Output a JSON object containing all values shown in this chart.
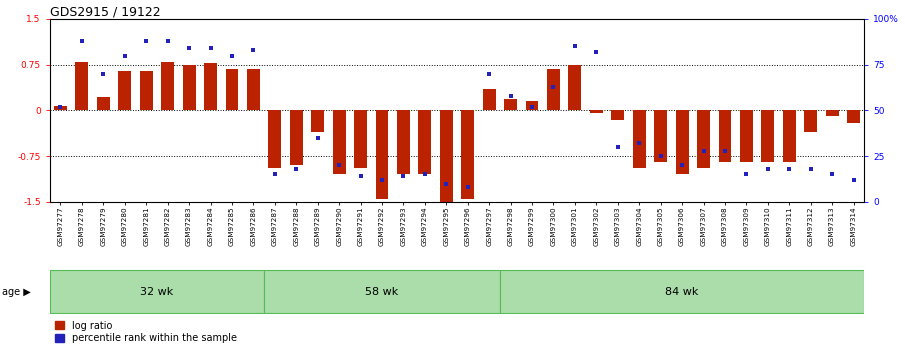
{
  "title": "GDS2915 / 19122",
  "samples": [
    "GSM97277",
    "GSM97278",
    "GSM97279",
    "GSM97280",
    "GSM97281",
    "GSM97282",
    "GSM97283",
    "GSM97284",
    "GSM97285",
    "GSM97286",
    "GSM97287",
    "GSM97288",
    "GSM97289",
    "GSM97290",
    "GSM97291",
    "GSM97292",
    "GSM97293",
    "GSM97294",
    "GSM97295",
    "GSM97296",
    "GSM97297",
    "GSM97298",
    "GSM97299",
    "GSM97300",
    "GSM97301",
    "GSM97302",
    "GSM97303",
    "GSM97304",
    "GSM97305",
    "GSM97306",
    "GSM97307",
    "GSM97308",
    "GSM97309",
    "GSM97310",
    "GSM97311",
    "GSM97312",
    "GSM97313",
    "GSM97314"
  ],
  "log_ratio": [
    0.07,
    0.8,
    0.22,
    0.65,
    0.65,
    0.8,
    0.75,
    0.78,
    0.68,
    0.68,
    -0.95,
    -0.9,
    -0.35,
    -1.05,
    -0.95,
    -1.45,
    -1.05,
    -1.05,
    -1.5,
    -1.45,
    0.35,
    0.18,
    0.15,
    0.68,
    0.75,
    -0.05,
    -0.15,
    -0.95,
    -0.85,
    -1.05,
    -0.95,
    -0.85,
    -0.85,
    -0.85,
    -0.85,
    -0.35,
    -0.1,
    -0.2
  ],
  "percentile": [
    52,
    88,
    70,
    80,
    88,
    88,
    84,
    84,
    80,
    83,
    15,
    18,
    35,
    20,
    14,
    12,
    14,
    15,
    10,
    8,
    70,
    58,
    52,
    63,
    85,
    82,
    30,
    32,
    25,
    20,
    28,
    28,
    15,
    18,
    18,
    18,
    15,
    12
  ],
  "groups": [
    {
      "label": "32 wk",
      "start": 0,
      "end": 9
    },
    {
      "label": "58 wk",
      "start": 10,
      "end": 20
    },
    {
      "label": "84 wk",
      "start": 21,
      "end": 37
    }
  ],
  "group_32_count": 10,
  "group_58_count": 11,
  "group_84_count": 17,
  "ylim": [
    -1.5,
    1.5
  ],
  "yticks_left": [
    -1.5,
    -0.75,
    0.0,
    0.75,
    1.5
  ],
  "yticks_left_labels": [
    "-1.5",
    "-0.75",
    "0",
    "0.75",
    "1.5"
  ],
  "yticks_right": [
    0,
    25,
    50,
    75,
    100
  ],
  "yticks_right_labels": [
    "0",
    "25",
    "50",
    "75",
    "100%"
  ],
  "hlines": [
    0.75,
    0.0,
    -0.75
  ],
  "bar_color": "#bb2200",
  "dot_color": "#2222bb",
  "group_color": "#aaddaa",
  "group_border_color": "#55bb55",
  "group_label_fontsize": 8,
  "tick_fontsize": 6.5,
  "title_fontsize": 9
}
